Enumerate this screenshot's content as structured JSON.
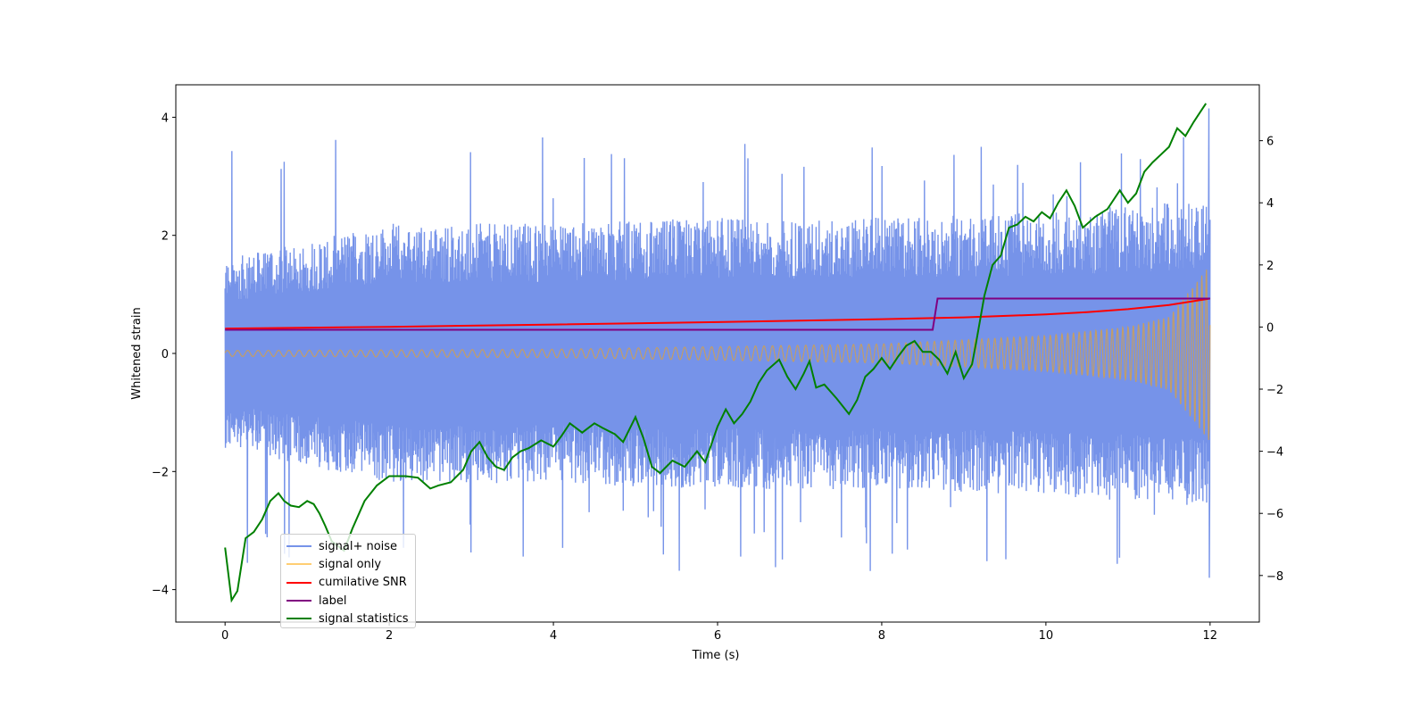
{
  "chart_data": {
    "type": "line",
    "title": "",
    "xlabel": "Time (s)",
    "ylabel": "Whitened strain",
    "y2label": "",
    "xlim": [
      -0.6,
      12.6
    ],
    "ylim": [
      -4.55,
      4.55
    ],
    "y2lim": [
      -9.5,
      7.8
    ],
    "xticks": [
      0,
      2,
      4,
      6,
      8,
      10,
      12
    ],
    "yticks": [
      -4,
      -2,
      0,
      2,
      4
    ],
    "y2ticks": [
      -8,
      -6,
      -4,
      -2,
      0,
      2,
      4,
      6
    ],
    "grid": false,
    "legend_position": "lower-left",
    "series": [
      {
        "name": "signal+ noise",
        "color": "#4169e1",
        "axis": "left",
        "description": "dense noisy whitened strain trace, approx. uniform envelope between -3.8 and 4.2",
        "envelope_upper": [
          [
            0,
            1.6
          ],
          [
            2,
            2.2
          ],
          [
            4,
            2.2
          ],
          [
            6,
            2.3
          ],
          [
            8,
            2.3
          ],
          [
            10,
            2.4
          ],
          [
            12,
            2.6
          ]
        ],
        "envelope_lower": [
          [
            0,
            -1.6
          ],
          [
            2,
            -2.2
          ],
          [
            4,
            -2.2
          ],
          [
            6,
            -2.3
          ],
          [
            8,
            -2.3
          ],
          [
            10,
            -2.4
          ],
          [
            12,
            -2.6
          ]
        ],
        "max": 4.15,
        "min": -3.8
      },
      {
        "name": "signal only",
        "color": "#ffa500",
        "axis": "left",
        "description": "chirp signal with amplitude growing from ~0.05 to ~1.5 toward t=12",
        "amplitude": [
          [
            0,
            0.05
          ],
          [
            4,
            0.07
          ],
          [
            8,
            0.16
          ],
          [
            10,
            0.3
          ],
          [
            11,
            0.45
          ],
          [
            11.5,
            0.62
          ],
          [
            12,
            1.5
          ]
        ]
      },
      {
        "name": "cumilative SNR",
        "color": "#ff0000",
        "axis": "left",
        "x": [
          0,
          2,
          4,
          6,
          8,
          9,
          10,
          10.5,
          11,
          11.5,
          12
        ],
        "y": [
          0.42,
          0.45,
          0.49,
          0.53,
          0.58,
          0.61,
          0.66,
          0.7,
          0.75,
          0.82,
          0.93
        ]
      },
      {
        "name": "label",
        "color": "#800080",
        "axis": "left",
        "x": [
          0,
          8.62,
          8.68,
          12
        ],
        "y": [
          0.4,
          0.4,
          0.93,
          0.93
        ]
      },
      {
        "name": "signal statistics",
        "color": "#008000",
        "axis": "right",
        "x": [
          0,
          0.08,
          0.15,
          0.25,
          0.35,
          0.45,
          0.55,
          0.65,
          0.72,
          0.8,
          0.9,
          1.0,
          1.08,
          1.15,
          1.22,
          1.3,
          1.45,
          1.55,
          1.7,
          1.85,
          2.0,
          2.2,
          2.35,
          2.5,
          2.6,
          2.75,
          2.9,
          3.0,
          3.1,
          3.2,
          3.3,
          3.4,
          3.5,
          3.6,
          3.7,
          3.85,
          4.0,
          4.1,
          4.2,
          4.35,
          4.5,
          4.6,
          4.75,
          4.85,
          5.0,
          5.1,
          5.2,
          5.3,
          5.45,
          5.6,
          5.75,
          5.85,
          6.0,
          6.1,
          6.2,
          6.3,
          6.4,
          6.5,
          6.6,
          6.75,
          6.85,
          6.95,
          7.05,
          7.12,
          7.2,
          7.3,
          7.45,
          7.6,
          7.7,
          7.8,
          7.9,
          8.0,
          8.1,
          8.2,
          8.3,
          8.4,
          8.5,
          8.6,
          8.7,
          8.8,
          8.9,
          9.0,
          9.1,
          9.15,
          9.25,
          9.35,
          9.45,
          9.55,
          9.65,
          9.75,
          9.85,
          9.95,
          10.05,
          10.15,
          10.25,
          10.35,
          10.45,
          10.6,
          10.75,
          10.9,
          11.0,
          11.1,
          11.2,
          11.3,
          11.4,
          11.5,
          11.6,
          11.7,
          11.8,
          11.9,
          11.95
        ],
        "y": [
          -7.1,
          -8.8,
          -8.5,
          -6.8,
          -6.6,
          -6.2,
          -5.6,
          -5.35,
          -5.6,
          -5.75,
          -5.8,
          -5.6,
          -5.7,
          -6.0,
          -6.4,
          -6.9,
          -7.2,
          -6.5,
          -5.6,
          -5.1,
          -4.8,
          -4.8,
          -4.85,
          -5.2,
          -5.1,
          -5.0,
          -4.6,
          -4.0,
          -3.7,
          -4.2,
          -4.5,
          -4.6,
          -4.2,
          -4.0,
          -3.9,
          -3.65,
          -3.85,
          -3.5,
          -3.1,
          -3.4,
          -3.1,
          -3.25,
          -3.45,
          -3.7,
          -2.9,
          -3.6,
          -4.5,
          -4.7,
          -4.3,
          -4.5,
          -4.0,
          -4.35,
          -3.2,
          -2.65,
          -3.1,
          -2.8,
          -2.4,
          -1.8,
          -1.4,
          -1.05,
          -1.6,
          -2.0,
          -1.5,
          -1.1,
          -1.95,
          -1.85,
          -2.3,
          -2.8,
          -2.35,
          -1.6,
          -1.35,
          -1.0,
          -1.35,
          -0.95,
          -0.6,
          -0.45,
          -0.8,
          -0.8,
          -1.05,
          -1.5,
          -0.8,
          -1.65,
          -1.2,
          -0.5,
          1.0,
          2.0,
          2.3,
          3.2,
          3.3,
          3.55,
          3.4,
          3.7,
          3.5,
          4.0,
          4.4,
          3.9,
          3.2,
          3.55,
          3.8,
          4.4,
          4.0,
          4.3,
          5.0,
          5.3,
          5.55,
          5.8,
          6.4,
          6.15,
          6.6,
          7.0,
          7.2
        ]
      }
    ]
  }
}
